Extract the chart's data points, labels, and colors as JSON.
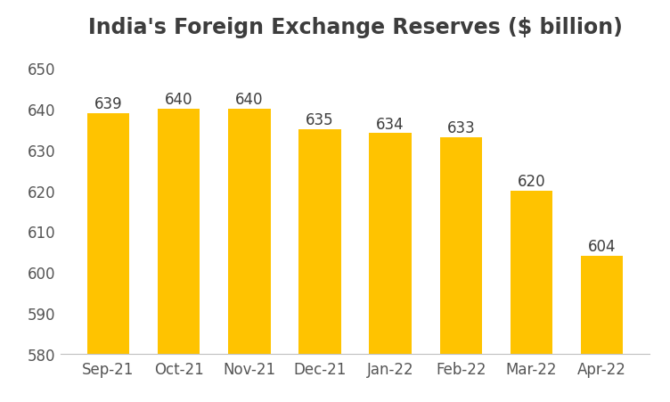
{
  "title": "India's Foreign Exchange Reserves ($ billion)",
  "categories": [
    "Sep-21",
    "Oct-21",
    "Nov-21",
    "Dec-21",
    "Jan-22",
    "Feb-22",
    "Mar-22",
    "Apr-22"
  ],
  "values": [
    639,
    640,
    640,
    635,
    634,
    633,
    620,
    604
  ],
  "bar_color": "#FFC300",
  "background_color": "#ffffff",
  "ylim": [
    580,
    655
  ],
  "yticks": [
    580,
    590,
    600,
    610,
    620,
    630,
    640,
    650
  ],
  "title_fontsize": 17,
  "tick_fontsize": 12,
  "label_fontsize": 12,
  "bar_width": 0.6,
  "title_color": "#3d3d3d",
  "tick_color": "#555555",
  "label_color": "#3d3d3d"
}
